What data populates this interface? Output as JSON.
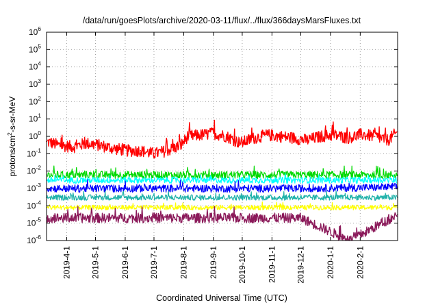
{
  "chart_data": {
    "type": "line",
    "title": "/data/run/goesPlots/archive/2020-03-11/flux/../flux/366daysMarsFluxes.txt",
    "xlabel": "Coordinated Universal Time (UTC)",
    "ylabel": {
      "base": "protons/cm",
      "sup": "2",
      "rest": "-s-sr-MeV"
    },
    "x_scale": "date",
    "xlim": [
      "2019-03-11",
      "2020-03-11"
    ],
    "x_ticks": [
      "2019-4-1",
      "2019-5-1",
      "2019-6-1",
      "2019-7-1",
      "2019-8-1",
      "2019-9-1",
      "2019-10-1",
      "2019-11-1",
      "2019-12-1",
      "2020-1-1",
      "2020-2-1"
    ],
    "x_tick_dates": [
      "2019-04-01",
      "2019-05-01",
      "2019-06-01",
      "2019-07-01",
      "2019-08-01",
      "2019-09-01",
      "2019-10-01",
      "2019-11-01",
      "2019-12-01",
      "2020-01-01",
      "2020-02-01"
    ],
    "y_scale": "log",
    "ylim": [
      1e-06,
      1000000.0
    ],
    "y_ticks": [
      {
        "base": "10",
        "exp": "-6"
      },
      {
        "base": "10",
        "exp": "-5"
      },
      {
        "base": "10",
        "exp": "-4"
      },
      {
        "base": "10",
        "exp": "-3"
      },
      {
        "base": "10",
        "exp": "-2"
      },
      {
        "base": "10",
        "exp": "-1"
      },
      {
        "base": "10",
        "exp": "0"
      },
      {
        "base": "10",
        "exp": "1"
      },
      {
        "base": "10",
        "exp": "2"
      },
      {
        "base": "10",
        "exp": "3"
      },
      {
        "base": "10",
        "exp": "4"
      },
      {
        "base": "10",
        "exp": "5"
      },
      {
        "base": "10",
        "exp": "6"
      }
    ],
    "grid": true,
    "legend": "none",
    "series": [
      {
        "color": "#ff0000",
        "x": [
          "2019-03-11",
          "2019-03-25",
          "2019-04-08",
          "2019-04-22",
          "2019-05-06",
          "2019-05-20",
          "2019-06-03",
          "2019-06-17",
          "2019-07-01",
          "2019-07-15",
          "2019-07-29",
          "2019-08-05",
          "2019-08-19",
          "2019-09-01",
          "2019-09-15",
          "2019-09-29",
          "2019-10-13",
          "2019-10-27",
          "2019-11-10",
          "2019-11-24",
          "2019-12-08",
          "2019-12-22",
          "2020-01-05",
          "2020-01-19",
          "2020-02-02",
          "2020-02-16",
          "2020-03-01",
          "2020-03-11"
        ],
        "y": [
          0.5,
          0.3,
          0.25,
          0.4,
          0.3,
          0.2,
          0.15,
          0.15,
          0.1,
          0.15,
          0.3,
          1.0,
          1.2,
          1.5,
          1.0,
          0.4,
          0.8,
          1.2,
          1.0,
          0.8,
          0.6,
          1.0,
          1.2,
          0.8,
          1.3,
          1.0,
          0.6,
          1.8
        ]
      },
      {
        "color": "#00d800",
        "x": [
          "2019-03-11",
          "2019-06-01",
          "2019-09-01",
          "2019-12-01",
          "2020-03-11"
        ],
        "y": [
          0.006,
          0.006,
          0.006,
          0.006,
          0.006
        ]
      },
      {
        "color": "#00ffff",
        "x": [
          "2019-03-11",
          "2019-06-01",
          "2019-09-01",
          "2019-12-01",
          "2020-03-11"
        ],
        "y": [
          0.003,
          0.003,
          0.003,
          0.003,
          0.003
        ]
      },
      {
        "color": "#0000ff",
        "x": [
          "2019-03-11",
          "2019-06-01",
          "2019-09-01",
          "2019-12-01",
          "2020-03-11"
        ],
        "y": [
          0.001,
          0.001,
          0.001,
          0.001,
          0.0012
        ]
      },
      {
        "color": "#20b2aa",
        "x": [
          "2019-03-11",
          "2019-06-01",
          "2019-09-01",
          "2019-12-01",
          "2020-03-11"
        ],
        "y": [
          0.0003,
          0.0003,
          0.0003,
          0.0003,
          0.0003
        ]
      },
      {
        "color": "#ffff00",
        "x": [
          "2019-03-11",
          "2019-06-01",
          "2019-09-01",
          "2019-12-01",
          "2020-03-11"
        ],
        "y": [
          8e-05,
          8e-05,
          8e-05,
          8e-05,
          8e-05
        ]
      },
      {
        "color": "#8b1a5a",
        "x": [
          "2019-03-11",
          "2019-06-01",
          "2019-09-01",
          "2019-12-01",
          "2020-01-21",
          "2020-03-11"
        ],
        "y": [
          2e-05,
          2e-05,
          2e-05,
          2e-05,
          1e-06,
          3e-05
        ]
      }
    ]
  }
}
